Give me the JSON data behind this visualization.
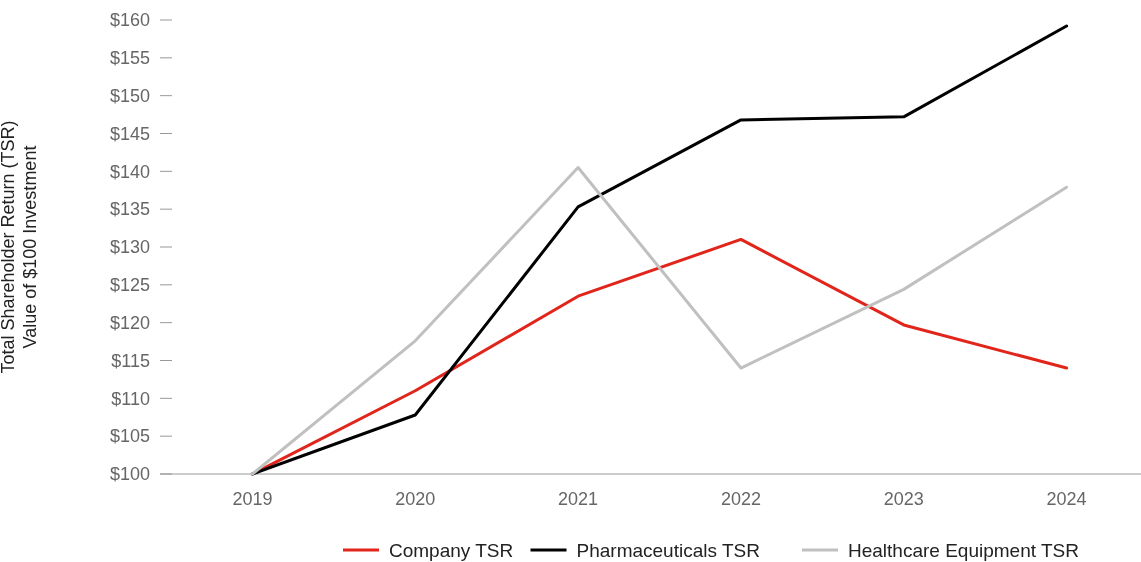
{
  "chart_data": {
    "type": "line",
    "ylabel": "Total Shareholder Return (TSR)\nValue of $100 Investment",
    "categories": [
      "2019",
      "2020",
      "2021",
      "2022",
      "2023",
      "2024"
    ],
    "series": [
      {
        "name": "Company TSR",
        "color": "#e1251b",
        "values": [
          100,
          111,
          123.5,
          131,
          119.7,
          114
        ]
      },
      {
        "name": "Pharmaceuticals TSR",
        "color": "#000000",
        "values": [
          100,
          107.8,
          135.3,
          146.8,
          147.2,
          159.2
        ]
      },
      {
        "name": "Healthcare Equipment TSR",
        "color": "#c0c0c0",
        "values": [
          100,
          117.6,
          140.5,
          114,
          124.4,
          137.9
        ]
      }
    ],
    "ylim": [
      100,
      160
    ],
    "yticks": [
      {
        "value": 100,
        "label": "$100"
      },
      {
        "value": 105,
        "label": "$105"
      },
      {
        "value": 110,
        "label": "$110"
      },
      {
        "value": 115,
        "label": "$115"
      },
      {
        "value": 120,
        "label": "$120"
      },
      {
        "value": 125,
        "label": "$125"
      },
      {
        "value": 130,
        "label": "$130"
      },
      {
        "value": 135,
        "label": "$135"
      },
      {
        "value": 140,
        "label": "$140"
      },
      {
        "value": 145,
        "label": "$145"
      },
      {
        "value": 150,
        "label": "$150"
      },
      {
        "value": 155,
        "label": "$155"
      },
      {
        "value": 160,
        "label": "$160"
      }
    ],
    "legend": "bottom",
    "line_style": "solid",
    "marker": "none"
  }
}
